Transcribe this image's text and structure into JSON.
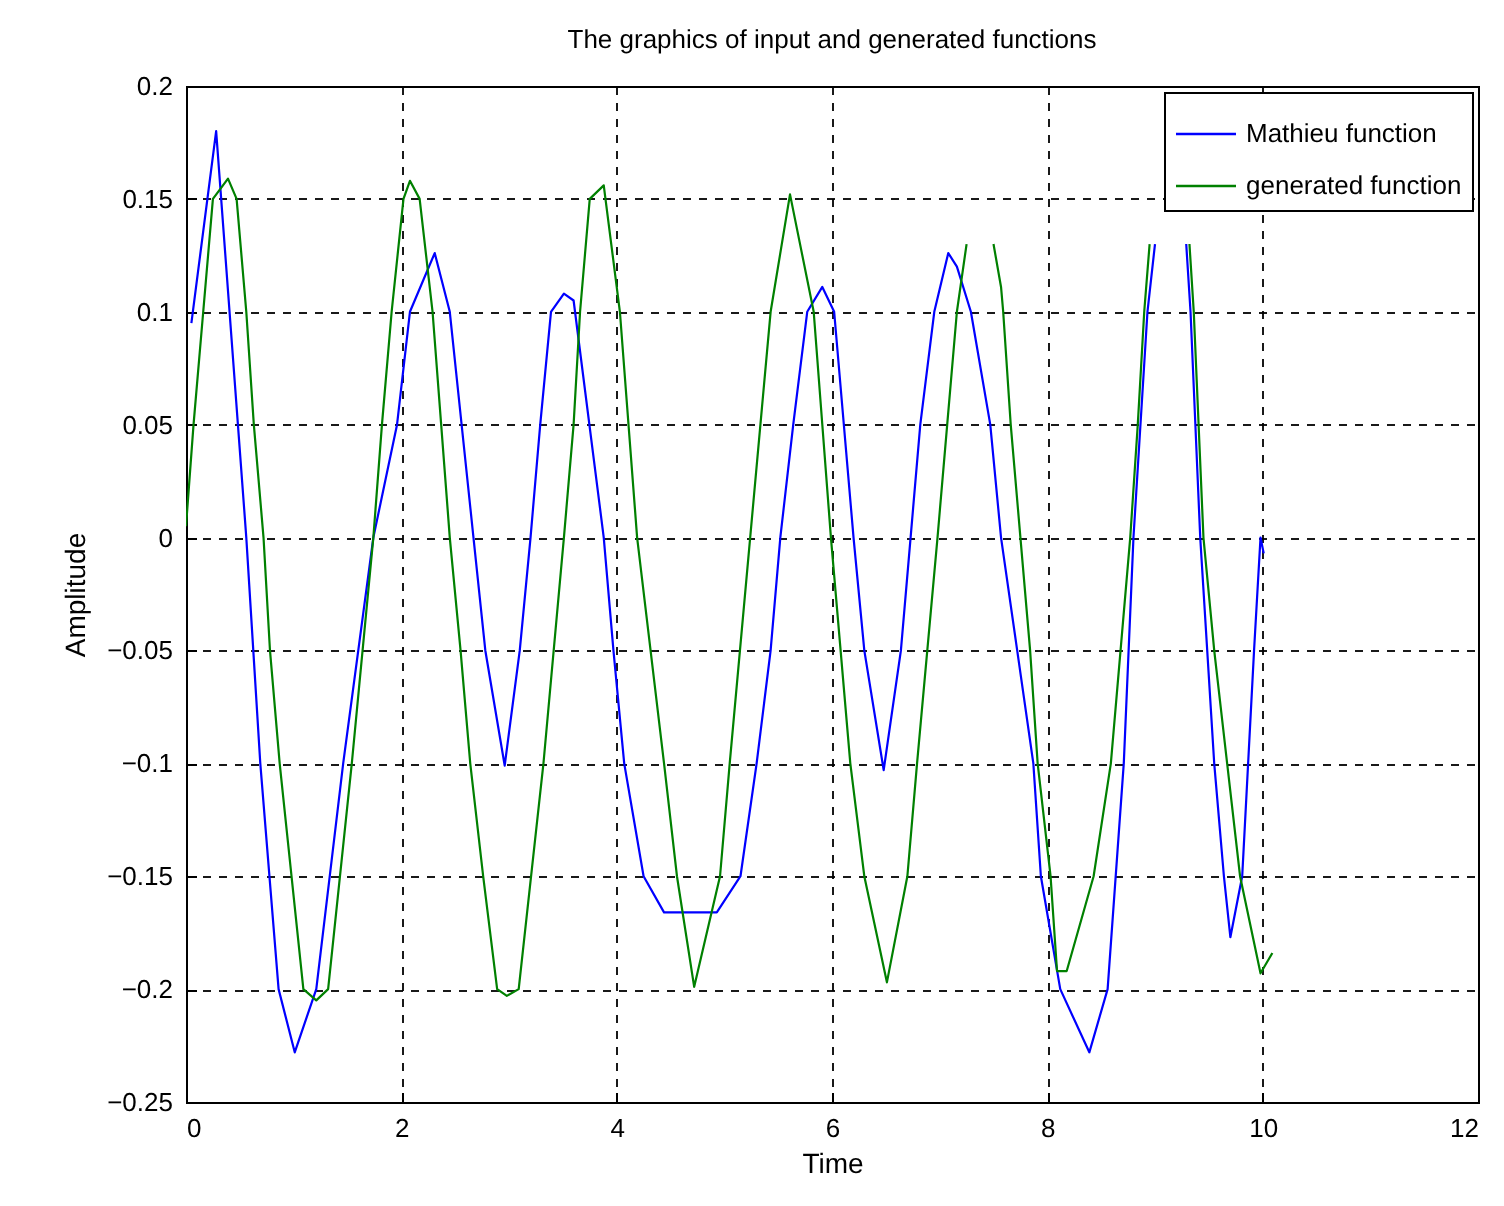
{
  "chart_data": {
    "type": "line",
    "title": "The graphics of input and generated functions",
    "xlabel": "Time",
    "ylabel": "Amplitude",
    "xlim": [
      0,
      12
    ],
    "xticks": [
      0,
      2,
      4,
      6,
      8,
      10,
      12
    ],
    "ylim": [
      -0.25,
      0.2
    ],
    "yticks": [
      -0.25,
      -0.2,
      -0.15,
      -0.1,
      -0.05,
      0,
      0.05,
      0.1,
      0.15,
      0.2
    ],
    "grid": true,
    "legend": "top right",
    "marker": "none",
    "line_style": "solid",
    "series": [
      {
        "name": "Mathieu function",
        "color": "#0000ff",
        "x": [
          0.05,
          0.28,
          0.56,
          0.69,
          0.86,
          1.01,
          1.21,
          1.46,
          1.74,
          1.96,
          2.08,
          2.31,
          2.45,
          2.67,
          2.78,
          2.96,
          3.1,
          3.2,
          3.29,
          3.39,
          3.51,
          3.6,
          3.88,
          3.97,
          4.07,
          4.25,
          4.44,
          4.93,
          5.15,
          5.3,
          5.43,
          5.52,
          5.64,
          5.77,
          5.91,
          6.02,
          6.2,
          6.3,
          6.48,
          6.64,
          6.73,
          6.82,
          6.95,
          7.08,
          7.16,
          7.29,
          7.47,
          7.57,
          7.72,
          7.87,
          7.94,
          8.12,
          8.39,
          8.56,
          8.71,
          8.8,
          8.93,
          9.0,
          9.15,
          9.29,
          9.33,
          9.42,
          9.55,
          9.64,
          9.7,
          9.81,
          9.92,
          9.98,
          10.01
        ],
        "values": [
          0.095,
          0.18,
          0,
          -0.1,
          -0.2,
          -0.228,
          -0.2,
          -0.1,
          0,
          0.05,
          0.1,
          0.126,
          0.1,
          0,
          -0.05,
          -0.101,
          -0.05,
          0,
          0.05,
          0.1,
          0.108,
          0.105,
          0,
          -0.05,
          -0.1,
          -0.15,
          -0.166,
          -0.166,
          -0.15,
          -0.1,
          -0.05,
          0,
          0.05,
          0.1,
          0.111,
          0.1,
          0,
          -0.05,
          -0.103,
          -0.05,
          0,
          0.05,
          0.1,
          0.126,
          0.12,
          0.1,
          0.05,
          0,
          -0.05,
          -0.1,
          -0.15,
          -0.2,
          -0.228,
          -0.2,
          -0.1,
          0,
          0.1,
          0.13,
          null,
          0.13,
          0.1,
          0,
          -0.1,
          -0.15,
          -0.177,
          -0.15,
          -0.05,
          0,
          -0.007
        ]
      },
      {
        "name": "generated function",
        "color": "#008000",
        "x": [
          0,
          0.07,
          0.16,
          0.25,
          0.39,
          0.47,
          0.56,
          0.63,
          0.72,
          0.78,
          0.87,
          0.98,
          1.09,
          1.21,
          1.32,
          1.54,
          1.74,
          1.82,
          1.91,
          2.02,
          2.08,
          2.17,
          2.29,
          2.37,
          2.45,
          2.55,
          2.64,
          2.76,
          2.89,
          2.98,
          3.09,
          3.32,
          3.51,
          3.6,
          3.66,
          3.75,
          3.88,
          4.03,
          4.19,
          4.44,
          4.56,
          4.72,
          4.96,
          5.05,
          5.24,
          5.43,
          5.61,
          5.83,
          5.99,
          6.17,
          6.3,
          6.51,
          6.7,
          6.79,
          6.98,
          7.07,
          7.16,
          7.25,
          7.4,
          7.5,
          7.57,
          7.59,
          7.66,
          7.75,
          7.84,
          7.91,
          8.03,
          8.09,
          8.18,
          8.43,
          8.59,
          8.77,
          8.84,
          8.9,
          8.95,
          9.15,
          9.32,
          9.36,
          9.45,
          9.55,
          9.67,
          9.79,
          9.98,
          10.09
        ],
        "values": [
          0.005,
          0.05,
          0.1,
          0.15,
          0.159,
          0.15,
          0.1,
          0.05,
          0,
          -0.05,
          -0.1,
          -0.15,
          -0.2,
          -0.205,
          -0.2,
          -0.1,
          0,
          0.05,
          0.1,
          0.15,
          0.158,
          0.15,
          0.1,
          0.05,
          0,
          -0.05,
          -0.1,
          -0.15,
          -0.2,
          -0.203,
          -0.2,
          -0.1,
          0,
          0.05,
          0.1,
          0.15,
          0.156,
          0.1,
          0,
          -0.1,
          -0.15,
          -0.199,
          -0.15,
          -0.1,
          0,
          0.1,
          0.152,
          0.1,
          0,
          -0.1,
          -0.15,
          -0.197,
          -0.15,
          -0.1,
          0,
          0.05,
          0.1,
          0.13,
          null,
          0.13,
          0.111,
          0.1,
          0.05,
          0,
          -0.05,
          -0.1,
          -0.15,
          -0.192,
          -0.192,
          -0.15,
          -0.1,
          0,
          0.05,
          0.1,
          0.13,
          null,
          0.13,
          0.1,
          0,
          -0.05,
          -0.1,
          -0.15,
          -0.193,
          -0.184
        ]
      }
    ]
  }
}
